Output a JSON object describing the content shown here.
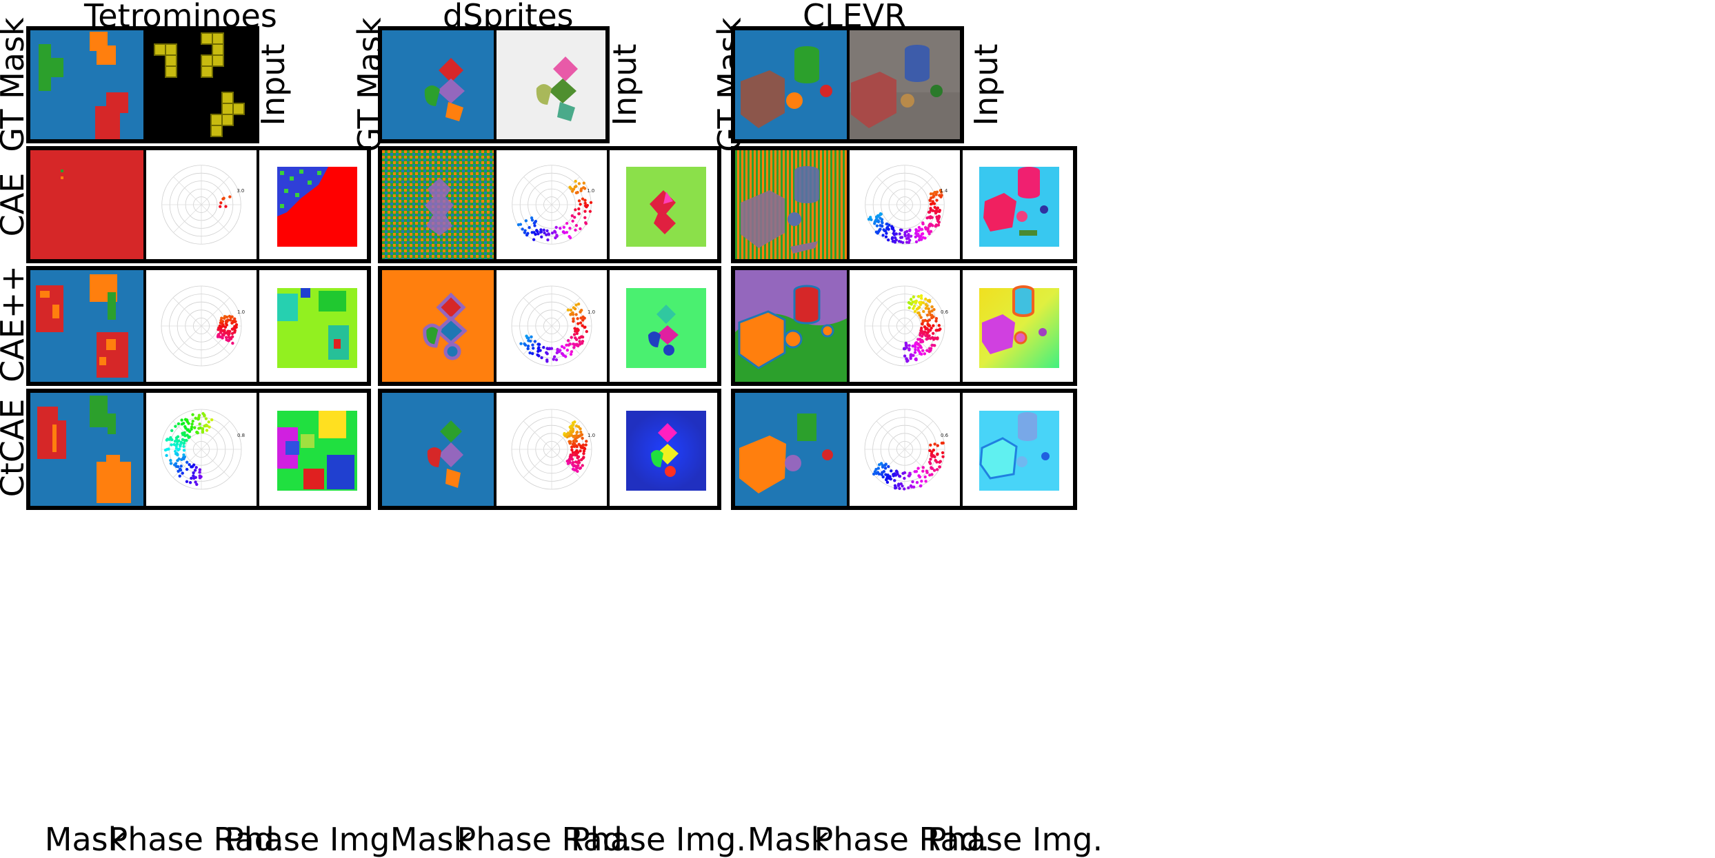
{
  "columns": [
    {
      "title": "Tetrominoes"
    },
    {
      "title": "dSprites"
    },
    {
      "title": "CLEVR"
    }
  ],
  "rows": {
    "gt_mask": "GT Mask",
    "input": "Input",
    "cae": "CAE",
    "caepp": "CAE++",
    "ctcae": "CtCAE"
  },
  "footer": {
    "mask": "Mask",
    "phase_rad": "Phase Rad.",
    "phase_img": "Phase Img."
  },
  "colors": {
    "blue": "#1f77b4",
    "orange": "#ff7f0e",
    "green": "#2ca02c",
    "red": "#d62728",
    "purple": "#9467bd",
    "yellow": "#d8d000"
  },
  "radial_labels": {
    "tetrominoes_cae": "3.0",
    "tetrominoes_caepp": "1.0",
    "tetrominoes_ctcae": "0.8",
    "dsprites_cae": "1.0",
    "dsprites_caepp": "1.0",
    "dsprites_ctcae": "1.0",
    "clevr_cae": "1.4",
    "clevr_caepp": "0.6",
    "clevr_ctcae": "0.6"
  }
}
